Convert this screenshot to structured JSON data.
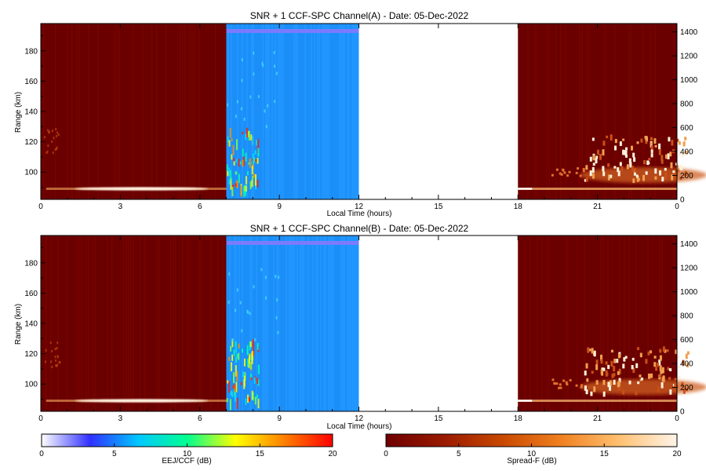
{
  "chart_data": [
    {
      "type": "heatmap",
      "title": "SNR + 1 CCF-SPC Channel(A) - Date: 05-Dec-2022",
      "xlabel": "Local Time (hours)",
      "ylabel": "Range (km)",
      "x_ticks": [
        "0",
        "3",
        "6",
        "9",
        "12",
        "15",
        "18",
        "21",
        "0"
      ],
      "y_ticks": [
        "100",
        "120",
        "140",
        "160",
        "180"
      ],
      "y2_ticks": [
        "0",
        "200",
        "400",
        "600",
        "800",
        "1000",
        "1200",
        "1400"
      ],
      "xlim": [
        0,
        24
      ],
      "ylim": [
        82,
        198
      ],
      "y2lim": [
        0,
        1470
      ],
      "segments": [
        {
          "start": 0,
          "end": 7,
          "mode": "Spread-F"
        },
        {
          "start": 7,
          "end": 12,
          "mode": "EEJ/CCF"
        },
        {
          "start": 12,
          "end": 18,
          "mode": "no data"
        },
        {
          "start": 18,
          "end": 24,
          "mode": "Spread-F"
        }
      ],
      "features": [
        {
          "desc": "E-region echo band",
          "x": [
            0.2,
            7
          ],
          "range_km": 89
        },
        {
          "desc": "strong EEJ echoes",
          "x": [
            7,
            8.2
          ],
          "range_km": [
            90,
            130
          ]
        },
        {
          "desc": "spread-F plumes",
          "x": [
            20.5,
            23.8
          ],
          "range_km": [
            95,
            125
          ]
        }
      ]
    },
    {
      "type": "heatmap",
      "title": "SNR + 1 CCF-SPC Channel(B) - Date: 05-Dec-2022",
      "xlabel": "Local Time (hours)",
      "ylabel": "Range (km)",
      "x_ticks": [
        "0",
        "3",
        "6",
        "9",
        "12",
        "15",
        "18",
        "21",
        "0"
      ],
      "y_ticks": [
        "100",
        "120",
        "140",
        "160",
        "180"
      ],
      "y2_ticks": [
        "0",
        "200",
        "400",
        "600",
        "800",
        "1000",
        "1200",
        "1400"
      ],
      "xlim": [
        0,
        24
      ],
      "ylim": [
        82,
        198
      ],
      "y2lim": [
        0,
        1470
      ],
      "segments": [
        {
          "start": 0,
          "end": 7,
          "mode": "Spread-F"
        },
        {
          "start": 7,
          "end": 12,
          "mode": "EEJ/CCF"
        },
        {
          "start": 12,
          "end": 18,
          "mode": "no data"
        },
        {
          "start": 18,
          "end": 24,
          "mode": "Spread-F"
        }
      ],
      "features": [
        {
          "desc": "E-region echo band",
          "x": [
            0.2,
            7
          ],
          "range_km": 89
        },
        {
          "desc": "strong EEJ echoes",
          "x": [
            7,
            8.2
          ],
          "range_km": [
            90,
            130
          ]
        },
        {
          "desc": "spread-F plumes",
          "x": [
            20.5,
            23.8
          ],
          "range_km": [
            95,
            125
          ]
        }
      ]
    }
  ],
  "colorbars": [
    {
      "label": "EEJ/CCF (dB)",
      "ticks": [
        "0",
        "5",
        "10",
        "15",
        "20"
      ],
      "range": [
        0,
        20
      ],
      "colors": [
        "#ffffff",
        "#3030ff",
        "#00c8ff",
        "#00ff90",
        "#ffff00",
        "#ff8000",
        "#ff0000"
      ]
    },
    {
      "label": "Spread-F (dB)",
      "ticks": [
        "0",
        "5",
        "10",
        "15",
        "20"
      ],
      "range": [
        0,
        20
      ],
      "colors": [
        "#6e0000",
        "#9a1a00",
        "#c84800",
        "#f08020",
        "#ffc070",
        "#fff4e8"
      ]
    }
  ]
}
